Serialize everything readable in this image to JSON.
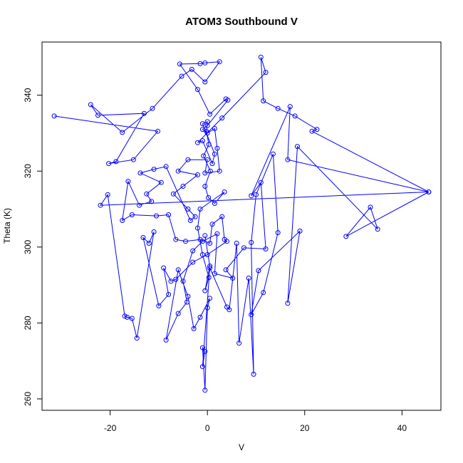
{
  "chart_data": {
    "type": "line",
    "title": "ATOM3 Southbound V",
    "xlabel": "V",
    "ylabel": "Theta (K)",
    "xlim": [
      -34,
      48
    ],
    "ylim": [
      257,
      354
    ],
    "x_ticks": [
      -20,
      0,
      20,
      40
    ],
    "y_ticks": [
      260,
      280,
      300,
      320,
      340
    ],
    "grid": false,
    "legend": "none",
    "series": [
      {
        "color": "#0000ff",
        "marker": "open-circle",
        "points": [
          [
            -31.5,
            334.5
          ],
          [
            -10.2,
            330.5
          ],
          [
            -15.2,
            323.0
          ],
          [
            -20.3,
            322.0
          ],
          [
            -18.8,
            322.5
          ],
          [
            -13.0,
            335.2
          ],
          [
            -22.5,
            334.7
          ],
          [
            -24.0,
            337.5
          ],
          [
            -17.5,
            330.2
          ],
          [
            -11.3,
            336.5
          ],
          [
            -5.3,
            345.0
          ],
          [
            -3.2,
            346.8
          ],
          [
            -0.5,
            343.5
          ],
          [
            2.5,
            348.8
          ],
          [
            -0.5,
            348.5
          ],
          [
            -1.5,
            348.3
          ],
          [
            -5.7,
            348.2
          ],
          [
            -2.0,
            341.5
          ],
          [
            0.5,
            335.0
          ],
          [
            3.8,
            339.0
          ],
          [
            4.2,
            338.7
          ],
          [
            0.0,
            332.0
          ],
          [
            -1.0,
            331.0
          ],
          [
            0.0,
            330.0
          ],
          [
            1.5,
            331.2
          ],
          [
            2.0,
            326.0
          ],
          [
            2.5,
            320.0
          ],
          [
            -0.5,
            319.5
          ],
          [
            0.0,
            323.0
          ],
          [
            -4.0,
            323.0
          ],
          [
            -6.0,
            320.0
          ],
          [
            -2.0,
            319.0
          ],
          [
            -5.0,
            316.0
          ],
          [
            -7.0,
            314.0
          ],
          [
            -4.0,
            310.0
          ],
          [
            -2.5,
            308.0
          ],
          [
            -3.5,
            307.0
          ],
          [
            -8.5,
            321.2
          ],
          [
            -11.0,
            320.5
          ],
          [
            -13.8,
            319.5
          ],
          [
            -9.5,
            317.0
          ],
          [
            -12.5,
            314.0
          ],
          [
            -11.5,
            312.0
          ],
          [
            -14.0,
            311.0
          ],
          [
            -16.3,
            317.3
          ],
          [
            -17.5,
            307.0
          ],
          [
            -15.5,
            308.5
          ],
          [
            -10.5,
            308.2
          ],
          [
            -8.0,
            308.5
          ],
          [
            -6.5,
            302.0
          ],
          [
            -4.5,
            301.5
          ],
          [
            -1.5,
            302.0
          ],
          [
            0.5,
            301.0
          ],
          [
            1.0,
            306.0
          ],
          [
            3.0,
            308.0
          ],
          [
            3.5,
            302.0
          ],
          [
            4.0,
            301.5
          ],
          [
            0.0,
            298.0
          ],
          [
            -3.0,
            296.0
          ],
          [
            -6.5,
            291.5
          ],
          [
            -7.5,
            291.0
          ],
          [
            -9.0,
            294.5
          ],
          [
            -8.0,
            287.5
          ],
          [
            -10.0,
            284.5
          ],
          [
            -13.2,
            302.5
          ],
          [
            -12.0,
            301.0
          ],
          [
            -11.0,
            304.0
          ],
          [
            -14.5,
            276.0
          ],
          [
            -15.5,
            281.2
          ],
          [
            -16.5,
            281.5
          ],
          [
            -17.0,
            281.8
          ],
          [
            -20.5,
            313.8
          ],
          [
            -22.0,
            311.0
          ],
          [
            45.5,
            314.5
          ],
          [
            28.5,
            302.8
          ],
          [
            33.5,
            310.5
          ],
          [
            35.0,
            304.7
          ],
          [
            18.5,
            326.5
          ],
          [
            16.5,
            285.2
          ],
          [
            19.0,
            304.2
          ],
          [
            10.5,
            293.8
          ],
          [
            9.0,
            282.2
          ],
          [
            11.5,
            288.0
          ],
          [
            14.5,
            303.8
          ],
          [
            13.5,
            324.5
          ],
          [
            10.0,
            313.8
          ],
          [
            9.0,
            301.2
          ],
          [
            9.5,
            266.5
          ],
          [
            8.5,
            291.8
          ],
          [
            6.5,
            274.7
          ],
          [
            6.0,
            301.0
          ],
          [
            4.5,
            283.5
          ],
          [
            4.0,
            284.2
          ],
          [
            0.5,
            294.5
          ],
          [
            -1.0,
            268.5
          ],
          [
            -0.5,
            272.5
          ],
          [
            -1.0,
            273.5
          ],
          [
            -0.5,
            262.3
          ],
          [
            0.0,
            284.0
          ],
          [
            0.5,
            286.5
          ],
          [
            -1.5,
            281.5
          ],
          [
            -2.8,
            278.5
          ],
          [
            -4.0,
            287.0
          ],
          [
            -6.0,
            294.0
          ],
          [
            -8.5,
            275.5
          ],
          [
            -6.0,
            282.5
          ],
          [
            -4.2,
            285.5
          ],
          [
            -5.0,
            291.0
          ],
          [
            -3.0,
            299.0
          ],
          [
            -1.0,
            301.5
          ],
          [
            2.0,
            303.5
          ],
          [
            1.5,
            293.0
          ],
          [
            5.2,
            291.8
          ],
          [
            3.8,
            294.0
          ],
          [
            7.5,
            299.8
          ],
          [
            12.0,
            299.5
          ],
          [
            11.0,
            317.0
          ],
          [
            9.0,
            313.5
          ],
          [
            17.0,
            337.0
          ],
          [
            16.5,
            323.0
          ],
          [
            45.5,
            314.5
          ],
          [
            21.5,
            330.5
          ],
          [
            22.5,
            331.0
          ],
          [
            18.0,
            334.5
          ],
          [
            14.5,
            336.5
          ],
          [
            11.5,
            338.5
          ],
          [
            11.0,
            350.0
          ],
          [
            12.0,
            346.0
          ],
          [
            3.0,
            334.0
          ],
          [
            -2.0,
            327.5
          ],
          [
            -1.0,
            328.0
          ],
          [
            1.0,
            322.0
          ],
          [
            1.5,
            324.5
          ],
          [
            -1.0,
            332.5
          ],
          [
            0.0,
            333.0
          ],
          [
            -0.2,
            330.5
          ],
          [
            0.3,
            327.0
          ],
          [
            -0.8,
            324.0
          ],
          [
            0.6,
            320.0
          ],
          [
            -0.5,
            316.0
          ],
          [
            0.2,
            313.0
          ],
          [
            1.5,
            311.5
          ],
          [
            3.5,
            314.5
          ],
          [
            -1.5,
            310.0
          ],
          [
            -2.0,
            305.0
          ],
          [
            -1.0,
            298.0
          ],
          [
            0.3,
            292.0
          ],
          [
            -0.5,
            288.5
          ],
          [
            0.5,
            295.0
          ],
          [
            -0.5,
            303.0
          ]
        ]
      }
    ]
  }
}
